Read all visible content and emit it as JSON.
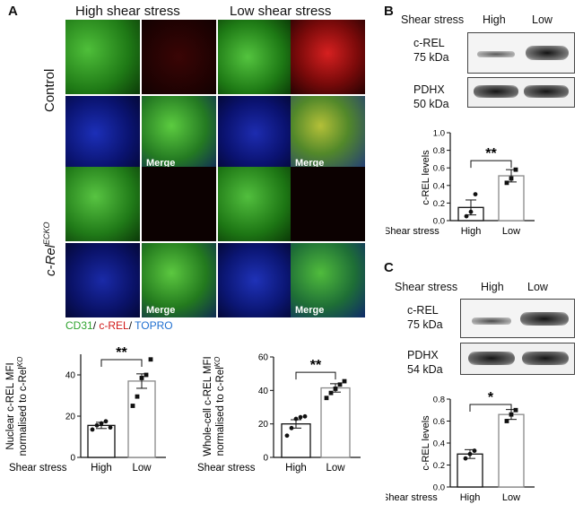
{
  "panel_a": {
    "letter": "A",
    "col_high": "High shear stress",
    "col_low": "Low shear stress",
    "row_control": "Control",
    "row_ko_base": "c-Rel",
    "row_ko_sup": "ECKO",
    "merge_label": "Merge",
    "legend": {
      "cd31": "CD31",
      "crel": "c-REL",
      "topro": "TOPRO",
      "sep": "/ "
    }
  },
  "panel_b": {
    "letter": "B",
    "shear_label": "Shear stress",
    "high": "High",
    "low": "Low",
    "blot1_line1": "c-REL",
    "blot1_line2": "75 kDa",
    "blot2_line1": "PDHX",
    "blot2_line2": "50 kDa"
  },
  "panel_c": {
    "letter": "C",
    "shear_label": "Shear stress",
    "high": "High",
    "low": "Low",
    "blot1_line1": "c-REL",
    "blot1_line2": "75 kDa",
    "blot2_line1": "PDHX",
    "blot2_line2": "54 kDa"
  },
  "chart_data": [
    {
      "type": "bar",
      "id": "nuclear",
      "ylabel_line1": "Nuclear c-REL MFI",
      "ylabel_line2": "normalised to c-Rel",
      "ylabel_sup": "KO",
      "xlabel": "Shear stress",
      "categories": [
        "High",
        "Low"
      ],
      "values": [
        15.5,
        37
      ],
      "errors": [
        1.5,
        3.5
      ],
      "points": [
        [
          13.5,
          15.5,
          16.5,
          17.5,
          14.5
        ],
        [
          25,
          29.5,
          38.5,
          40,
          47.5
        ]
      ],
      "yticks": [
        0,
        20,
        40
      ],
      "ylim": [
        0,
        50
      ],
      "significance": "**"
    },
    {
      "type": "bar",
      "id": "wholecell",
      "ylabel_line1": "Whole-cell c-REL MFI",
      "ylabel_line2": "normalised to c-Rel",
      "ylabel_sup": "KO",
      "xlabel": "Shear stress",
      "categories": [
        "High",
        "Low"
      ],
      "values": [
        20,
        41.5
      ],
      "errors": [
        2.5,
        2.5
      ],
      "points": [
        [
          13,
          17.5,
          23,
          24,
          24.5
        ],
        [
          35.5,
          38.5,
          41,
          43.5,
          45.5
        ]
      ],
      "yticks": [
        0,
        20,
        40,
        60
      ],
      "ylim": [
        0,
        60
      ],
      "significance": "**"
    },
    {
      "type": "bar",
      "id": "blot_b",
      "ylabel": "c-REL levels",
      "xlabel": "Shear stress",
      "categories": [
        "High",
        "Low"
      ],
      "values": [
        0.15,
        0.51
      ],
      "errors": [
        0.085,
        0.07
      ],
      "points": [
        [
          0.05,
          0.1,
          0.3
        ],
        [
          0.43,
          0.48,
          0.58
        ]
      ],
      "yticks": [
        0.0,
        0.2,
        0.4,
        0.6,
        0.8,
        1.0
      ],
      "ylim": [
        0,
        1.0
      ],
      "significance": "**"
    },
    {
      "type": "bar",
      "id": "blot_c",
      "ylabel": "c-REL levels",
      "xlabel": "Shear stress",
      "categories": [
        "High",
        "Low"
      ],
      "values": [
        0.3,
        0.66
      ],
      "errors": [
        0.04,
        0.045
      ],
      "points": [
        [
          0.26,
          0.3,
          0.33
        ],
        [
          0.6,
          0.66,
          0.7
        ]
      ],
      "yticks": [
        0.0,
        0.2,
        0.4,
        0.6,
        0.8
      ],
      "ylim": [
        0,
        0.8
      ],
      "significance": "*"
    }
  ]
}
